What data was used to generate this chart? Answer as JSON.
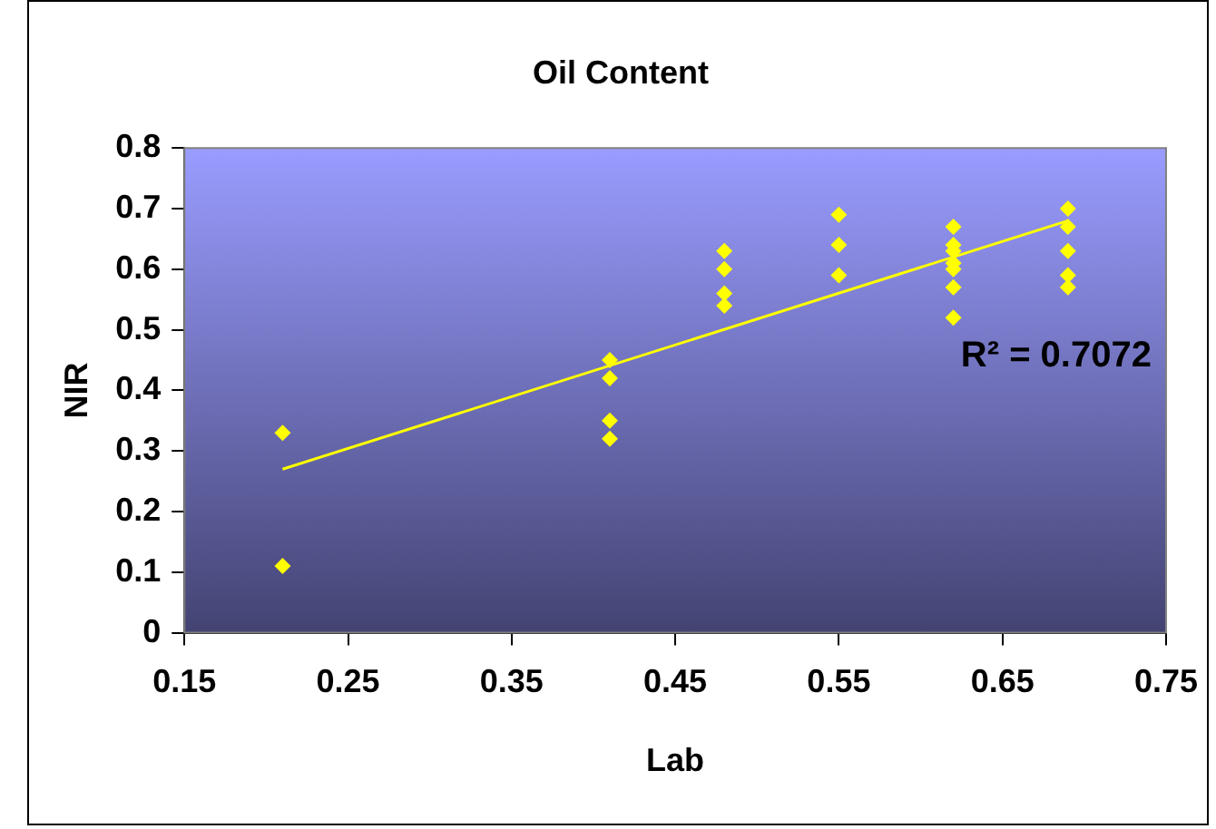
{
  "chart_data": {
    "type": "scatter",
    "title": "Oil Content",
    "xlabel": "Lab",
    "ylabel": "NIR",
    "xlim": [
      0.15,
      0.75
    ],
    "xticks": [
      0.15,
      0.25,
      0.35,
      0.45,
      0.55,
      0.65,
      0.75
    ],
    "ylim": [
      0,
      0.8
    ],
    "yticks": [
      0,
      {
        "value": 0.1,
        "label": "0.1"
      },
      {
        "value": 0.2,
        "label": "0.2"
      },
      {
        "value": 0.3,
        "label": "0.3"
      },
      {
        "value": 0.4,
        "label": "0.4"
      },
      {
        "value": 0.5,
        "label": "0.5"
      },
      {
        "value": 0.6,
        "label": "0.6"
      },
      {
        "value": 0.7,
        "label": "0.7"
      },
      {
        "value": 0.8,
        "label": "0.8"
      }
    ],
    "grid": false,
    "legend": false,
    "marker": "diamond",
    "series": [
      {
        "color": "#ffff00",
        "x": [
          0.21,
          0.21,
          0.41,
          0.41,
          0.41,
          0.41,
          0.48,
          0.48,
          0.48,
          0.48,
          0.55,
          0.55,
          0.55,
          0.62,
          0.62,
          0.62,
          0.62,
          0.62,
          0.62,
          0.62,
          0.69,
          0.69,
          0.69,
          0.69,
          0.69
        ],
        "values": [
          0.33,
          0.11,
          0.45,
          0.42,
          0.35,
          0.32,
          0.63,
          0.6,
          0.56,
          0.54,
          0.69,
          0.64,
          0.59,
          0.67,
          0.64,
          0.63,
          0.61,
          0.6,
          0.57,
          0.52,
          0.7,
          0.67,
          0.63,
          0.59,
          0.57
        ]
      },
      {
        "type": "line",
        "color": "#ffff00",
        "marker": "none",
        "x": [
          0.21,
          0.69
        ],
        "values": [
          0.27,
          0.68
        ]
      }
    ],
    "annotations": [
      "R² = 0.7072"
    ]
  }
}
